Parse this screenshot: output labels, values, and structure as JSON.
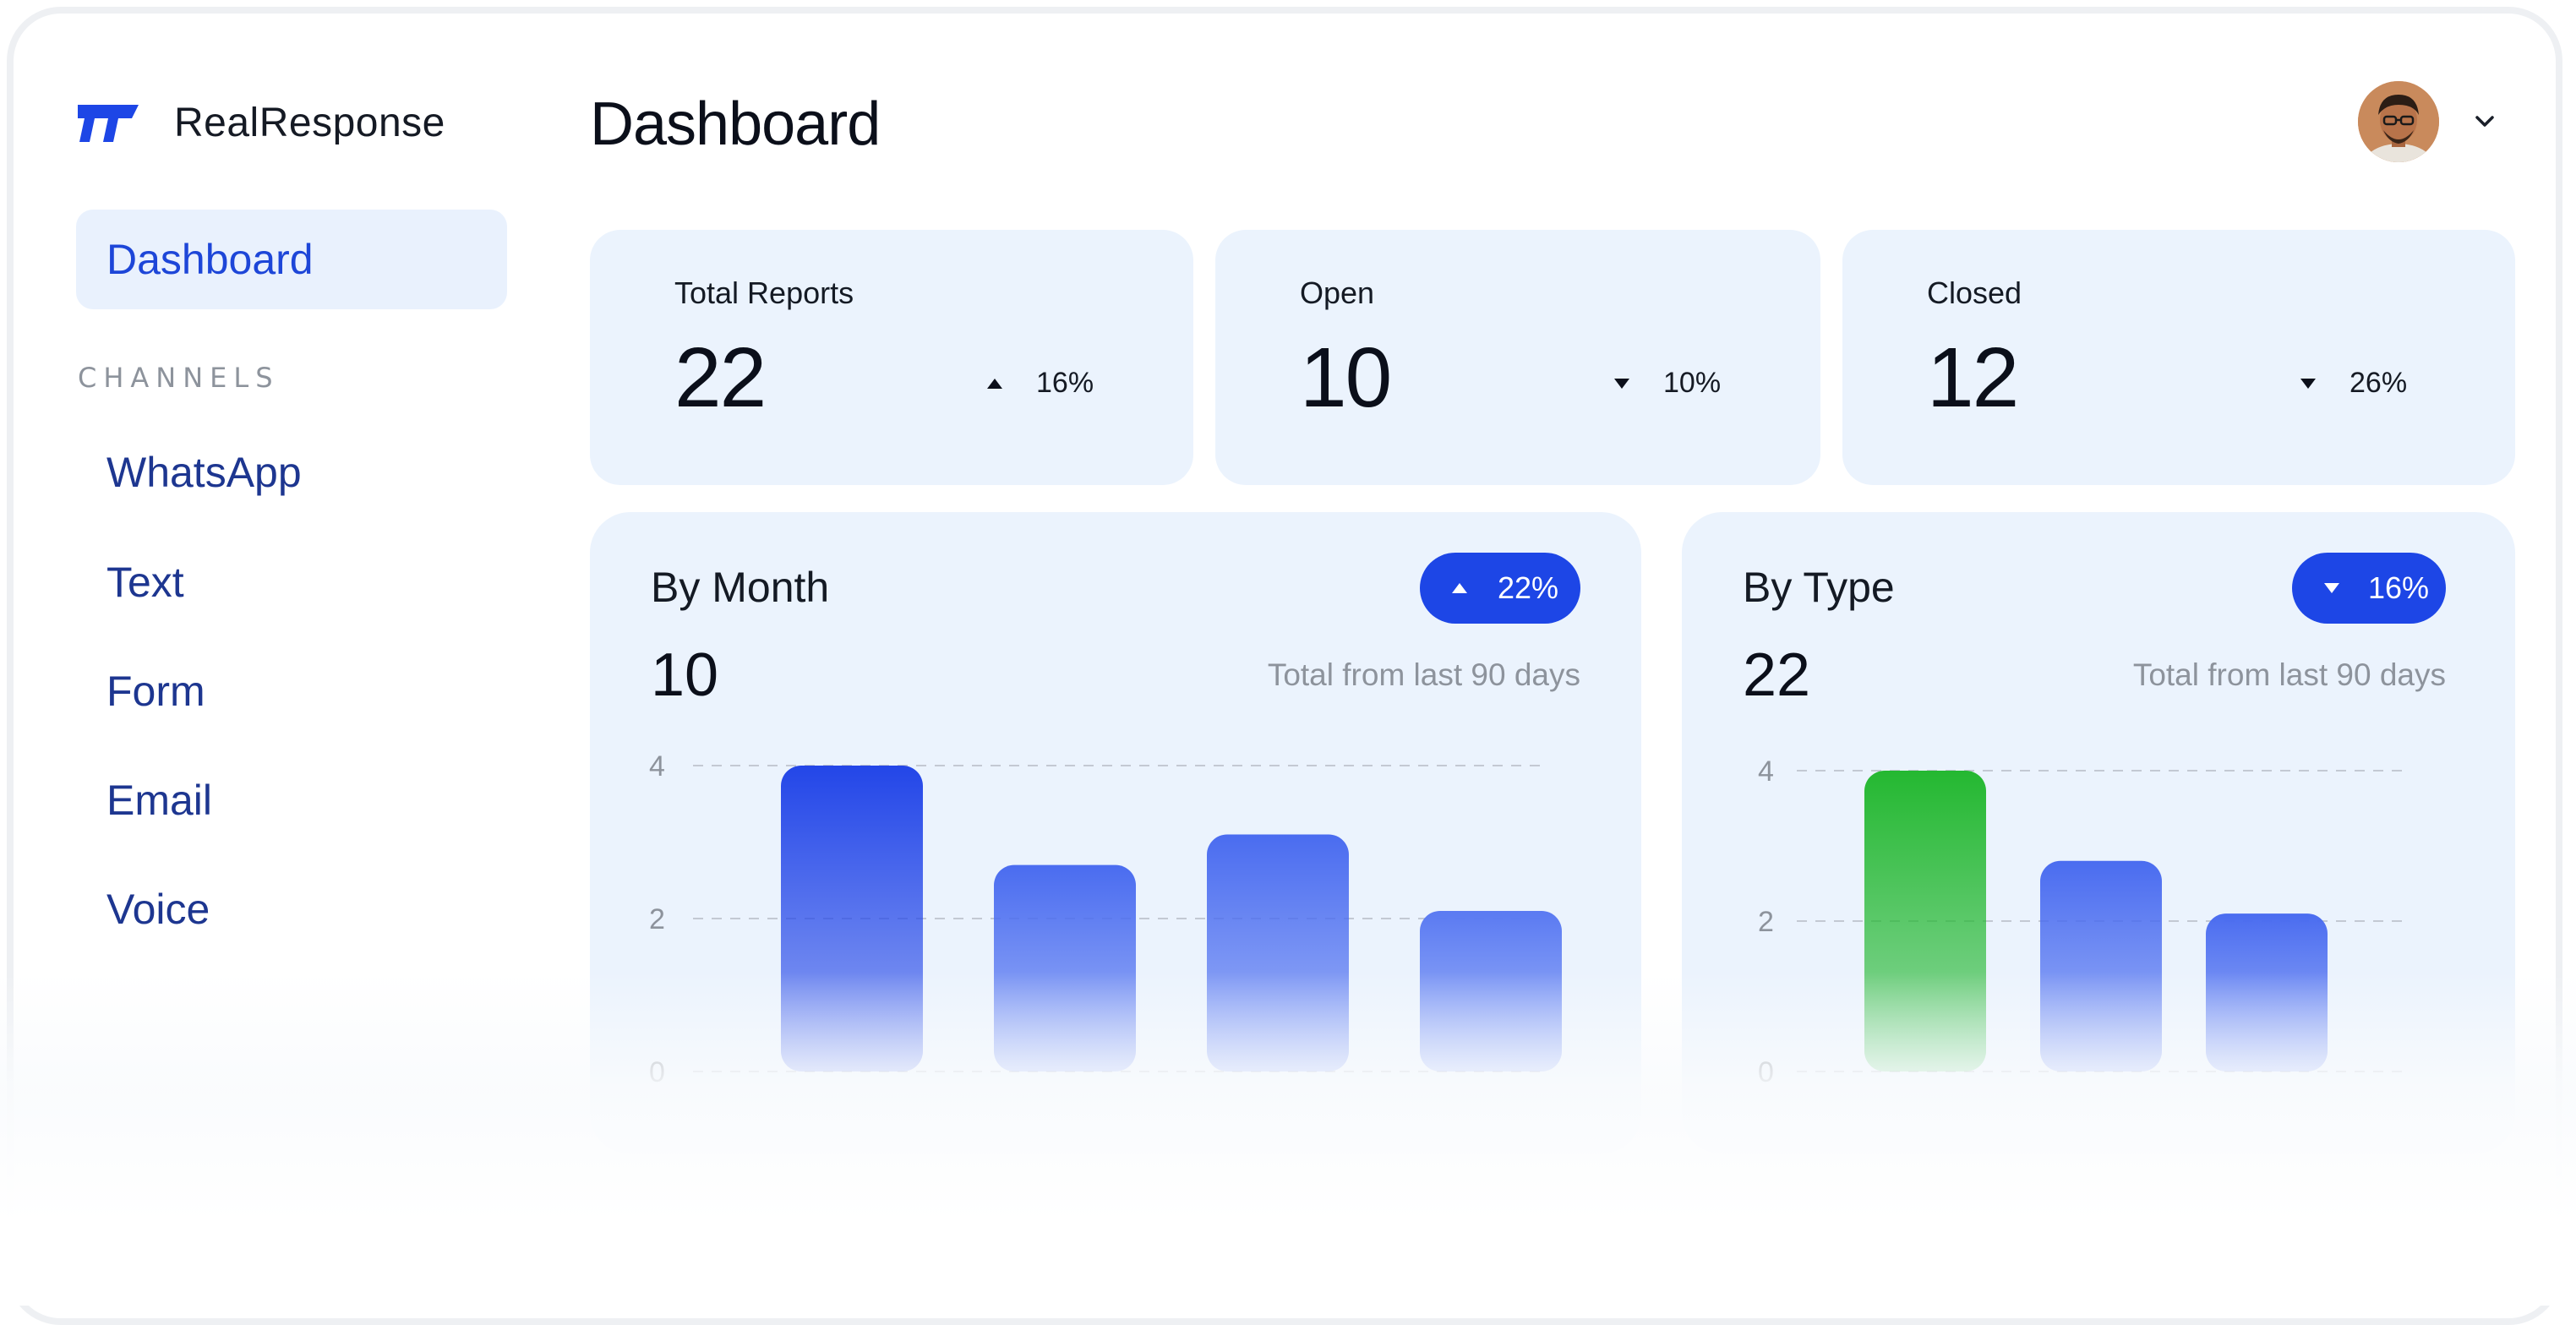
{
  "app": {
    "name": "RealResponse",
    "logo_icon": "realresponse-logo-icon"
  },
  "sidebar": {
    "active_item": "Dashboard",
    "section_heading": "CHANNELS",
    "items": [
      {
        "label": "WhatsApp"
      },
      {
        "label": "Text"
      },
      {
        "label": "Form"
      },
      {
        "label": "Email"
      },
      {
        "label": "Voice"
      }
    ]
  },
  "header": {
    "title": "Dashboard",
    "avatar_icon": "user-avatar",
    "menu_icon": "chevron-down-icon"
  },
  "stats": [
    {
      "label": "Total Reports",
      "value": "22",
      "trend": "up",
      "change": "16%"
    },
    {
      "label": "Open",
      "value": "10",
      "trend": "down",
      "change": "10%"
    },
    {
      "label": "Closed",
      "value": "12",
      "trend": "down",
      "change": "26%"
    }
  ],
  "charts": {
    "by_month": {
      "title": "By Month",
      "value": "10",
      "subtitle": "Total from last 90 days",
      "trend": "up",
      "change": "22%"
    },
    "by_type": {
      "title": "By Type",
      "value": "22",
      "subtitle": "Total from last 90 days",
      "trend": "down",
      "change": "16%"
    }
  },
  "chart_data": [
    {
      "type": "bar",
      "title": "By Month",
      "categories": [
        "",
        "",
        "",
        ""
      ],
      "values": [
        4,
        2.7,
        3.1,
        2.1
      ],
      "yticks": [
        "4",
        "2",
        "0"
      ],
      "ylim": [
        0,
        4
      ],
      "grid": true,
      "colors": [
        "#2346e8",
        "#4a6cf0",
        "#4a6cf0",
        "#5a7af2"
      ]
    },
    {
      "type": "bar",
      "title": "By Type",
      "categories": [
        "",
        "",
        ""
      ],
      "values": [
        4,
        2.8,
        2.1
      ],
      "yticks": [
        "4",
        "2",
        "0"
      ],
      "ylim": [
        0,
        4
      ],
      "grid": true,
      "colors": [
        "#24b831",
        "#4a6cf0",
        "#4a6cf0"
      ]
    }
  ],
  "colors": {
    "accent": "#1d46e6",
    "card": "#ebf3fd",
    "nav_text": "#1d3690",
    "highlight_green": "#24b831"
  }
}
